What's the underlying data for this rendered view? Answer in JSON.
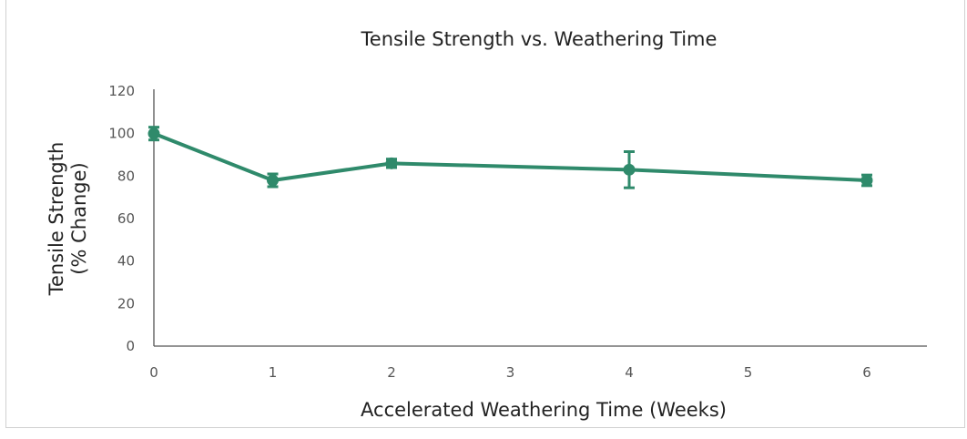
{
  "colors": {
    "series": "#2f8a6b",
    "axis": "#555555",
    "text": "#222222"
  },
  "chart_data": {
    "type": "line",
    "title": "Tensile Strength vs. Weathering Time",
    "xlabel": "Accelerated Weathering Time (Weeks)",
    "ylabel_lines": [
      "Tensile Strength",
      "(% Change)"
    ],
    "x_ticks": [
      0,
      1,
      2,
      3,
      4,
      5,
      6
    ],
    "y_ticks": [
      0,
      20,
      40,
      60,
      80,
      100,
      120
    ],
    "xlim": [
      0,
      6.5
    ],
    "ylim": [
      0,
      120
    ],
    "grid": false,
    "series": [
      {
        "x": [
          0,
          1,
          2,
          4,
          6
        ],
        "y": [
          100,
          78,
          86,
          83,
          78
        ],
        "error": [
          3,
          3,
          2,
          8.5,
          2.5
        ]
      }
    ]
  }
}
